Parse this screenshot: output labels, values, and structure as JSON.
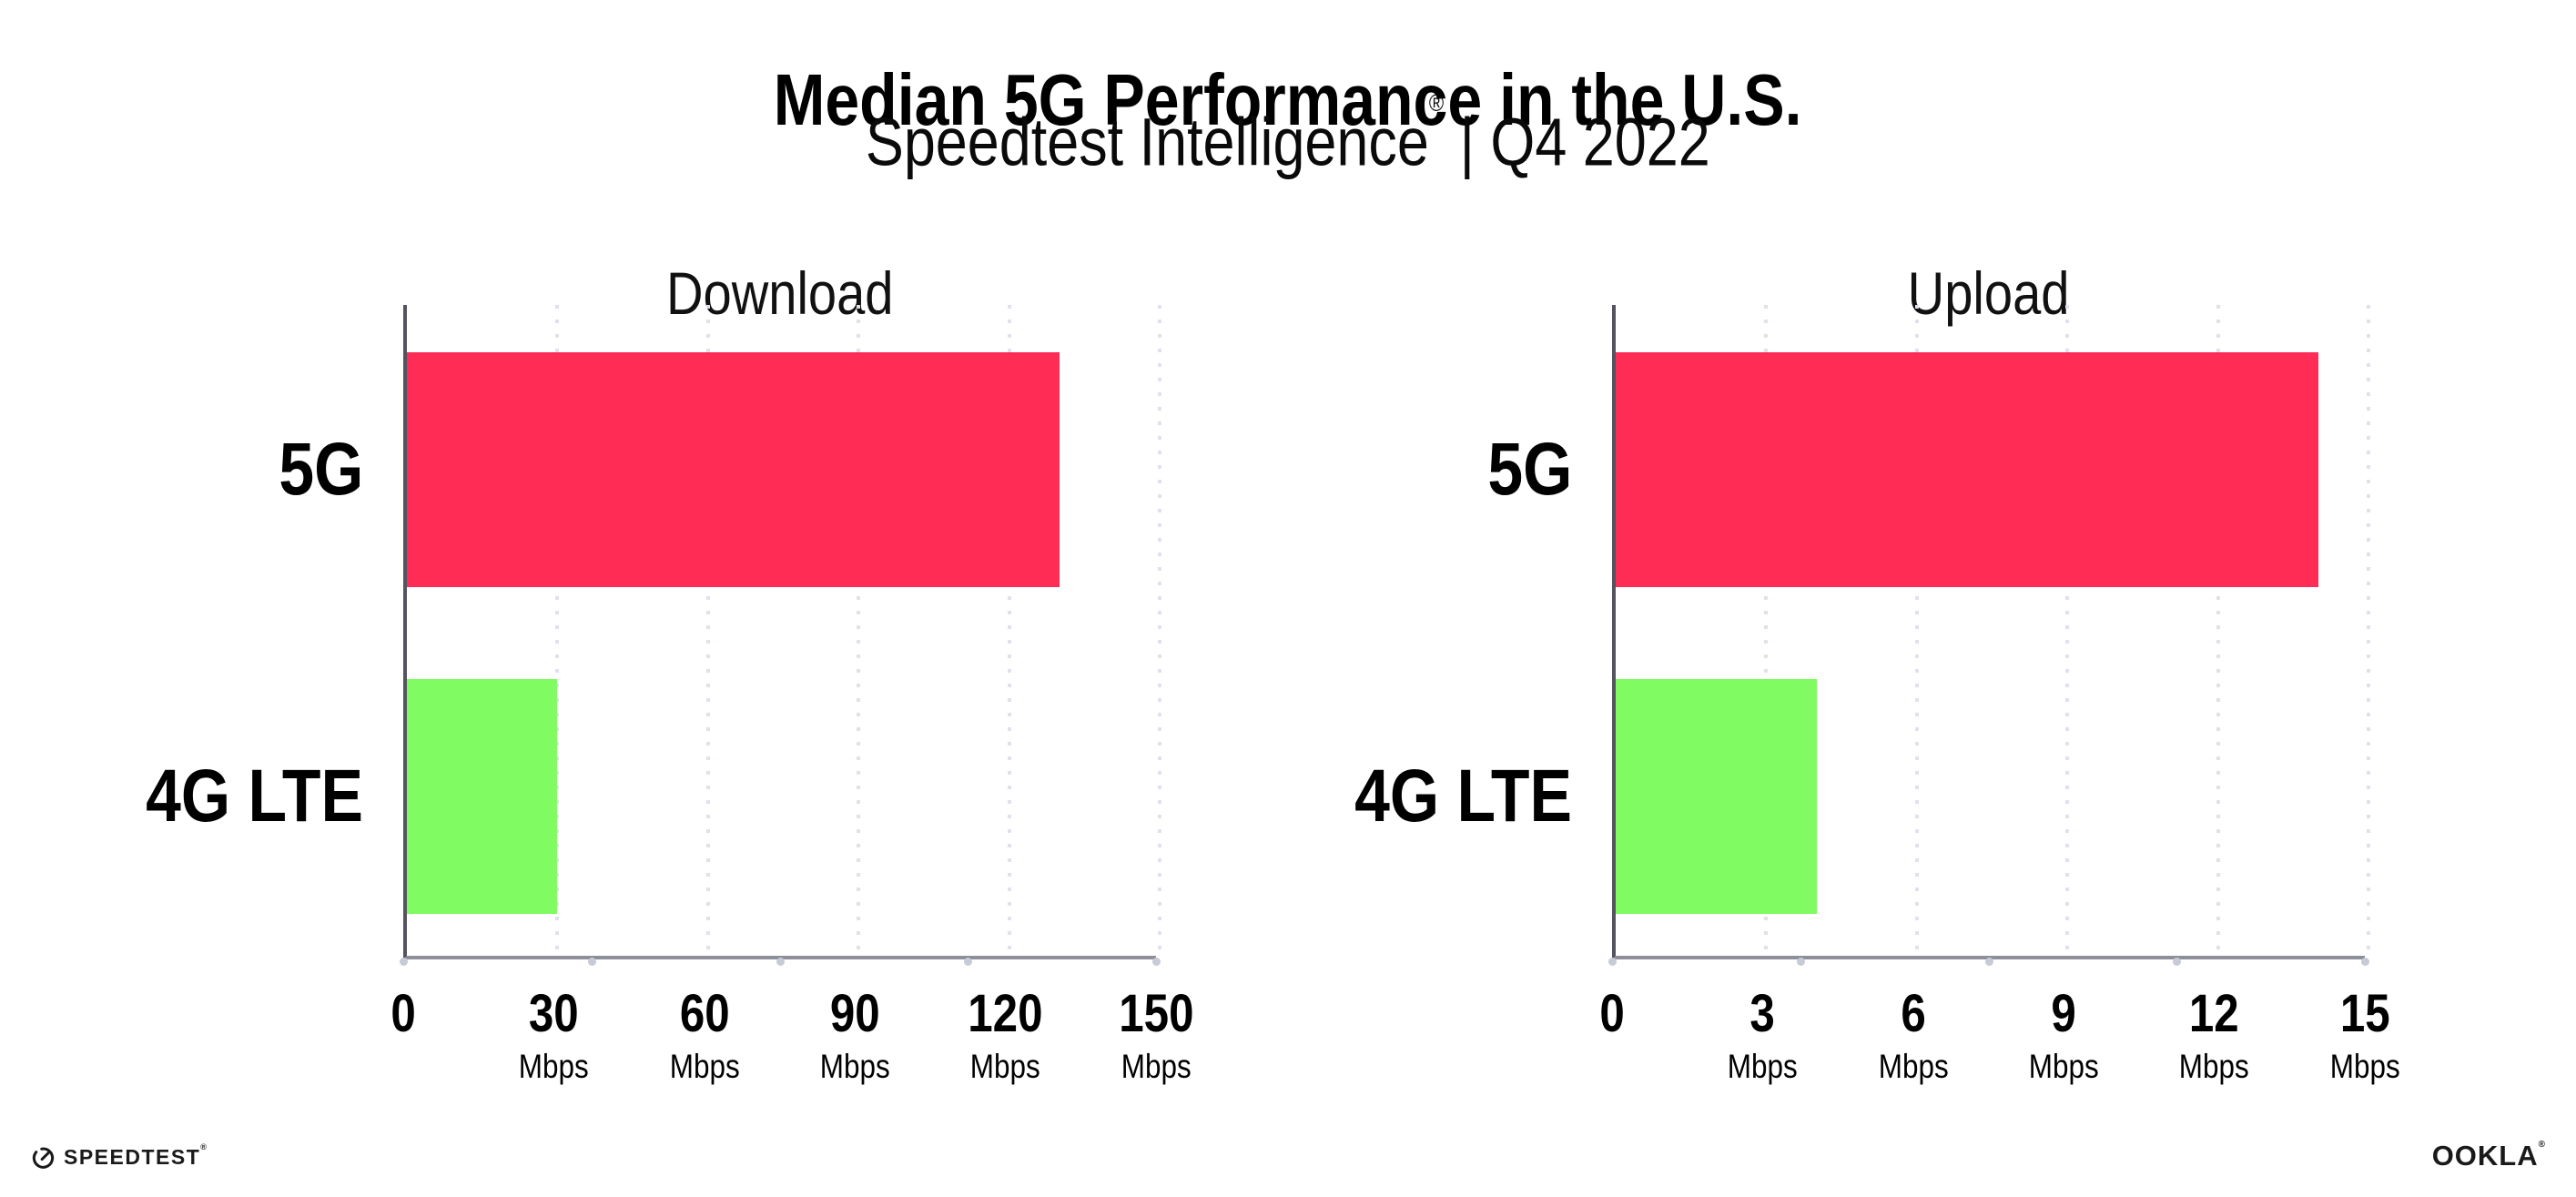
{
  "header": {
    "title": "Median 5G Performance in the U.S.",
    "subtitle_brand": "Speedtest Intelligence",
    "subtitle_mark": "®",
    "subtitle_period": " | Q4 2022"
  },
  "chart_data": [
    {
      "type": "bar",
      "orientation": "horizontal",
      "title": "Download",
      "categories": [
        "5G",
        "4G LTE"
      ],
      "values": [
        130,
        30
      ],
      "unit": "Mbps",
      "xlim": [
        0,
        150
      ],
      "xticks": [
        0,
        30,
        60,
        90,
        120,
        150
      ],
      "bar_colors": [
        "#FF2D55",
        "#80FB61"
      ],
      "grid": "dotted-vertical-at-ticks",
      "legend": "none"
    },
    {
      "type": "bar",
      "orientation": "horizontal",
      "title": "Upload",
      "categories": [
        "5G",
        "4G LTE"
      ],
      "values": [
        14,
        4
      ],
      "unit": "Mbps",
      "xlim": [
        0,
        15
      ],
      "xticks": [
        0,
        3,
        6,
        9,
        12,
        15
      ],
      "bar_colors": [
        "#FF2D55",
        "#80FB61"
      ],
      "grid": "dotted-vertical-at-ticks",
      "legend": "none"
    }
  ],
  "footer": {
    "speedtest_label": "SPEEDTEST",
    "speedtest_mark": "®",
    "ookla_label": "OOKLA",
    "ookla_mark": "®"
  },
  "colors": {
    "bar_5g": "#FF2D55",
    "bar_4g_lte": "#80FB61",
    "grid_dots": "#E1E1EC",
    "y_axis": "#54545E",
    "x_axis": "#8F8F99",
    "text": "#000000",
    "background": "#FFFFFF"
  }
}
